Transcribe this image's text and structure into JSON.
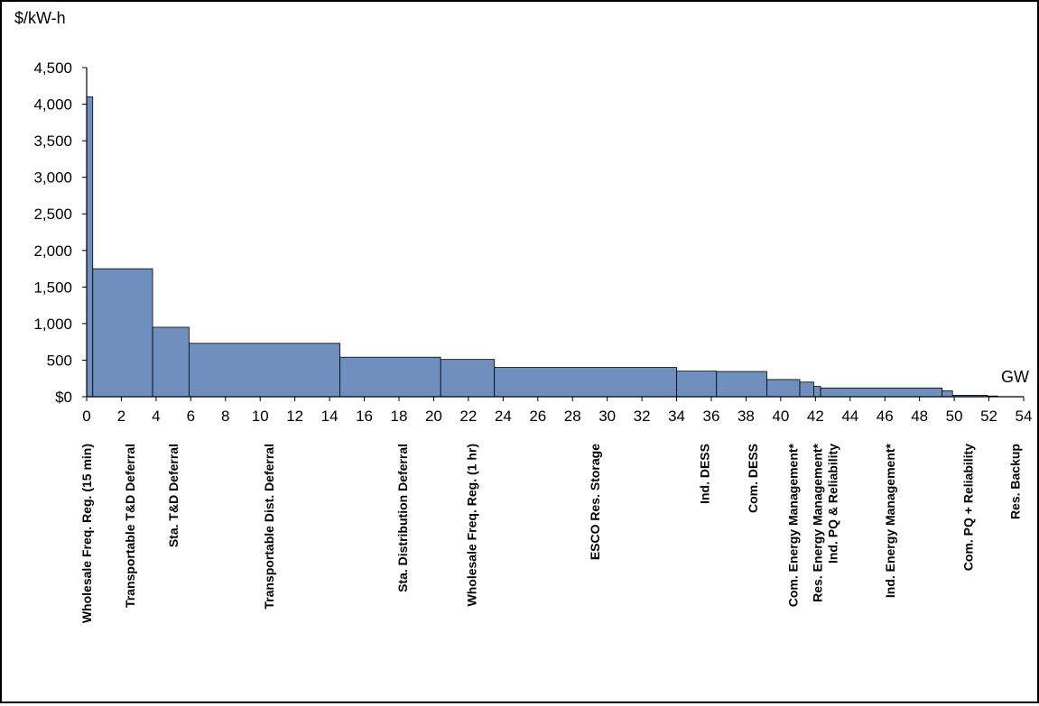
{
  "chart_data": {
    "type": "bar",
    "ylabel": "$/kW-h",
    "xlabel": "GW",
    "ylim": [
      0,
      4500
    ],
    "xlim": [
      0,
      54
    ],
    "y_ticks": [
      {
        "v": 0,
        "label": "$0"
      },
      {
        "v": 500,
        "label": "500"
      },
      {
        "v": 1000,
        "label": "1,000"
      },
      {
        "v": 1500,
        "label": "1,500"
      },
      {
        "v": 2000,
        "label": "2,000"
      },
      {
        "v": 2500,
        "label": "2,500"
      },
      {
        "v": 3000,
        "label": "3,000"
      },
      {
        "v": 3500,
        "label": "3,500"
      },
      {
        "v": 4000,
        "label": "4,000"
      },
      {
        "v": 4500,
        "label": "4,500"
      }
    ],
    "x_ticks": [
      "0",
      "2",
      "4",
      "6",
      "8",
      "10",
      "12",
      "14",
      "16",
      "18",
      "20",
      "22",
      "24",
      "26",
      "28",
      "30",
      "32",
      "34",
      "36",
      "38",
      "40",
      "42",
      "44",
      "46",
      "48",
      "50",
      "52",
      "54"
    ],
    "bar_color": "#6f8fbf",
    "segments": [
      {
        "x0": 0.0,
        "x1": 0.35,
        "value": 4100
      },
      {
        "x0": 0.35,
        "x1": 3.8,
        "value": 1750
      },
      {
        "x0": 3.8,
        "x1": 5.9,
        "value": 950
      },
      {
        "x0": 5.9,
        "x1": 14.6,
        "value": 730
      },
      {
        "x0": 14.6,
        "x1": 20.4,
        "value": 540
      },
      {
        "x0": 20.4,
        "x1": 23.5,
        "value": 510
      },
      {
        "x0": 23.5,
        "x1": 34.0,
        "value": 400
      },
      {
        "x0": 34.0,
        "x1": 36.3,
        "value": 350
      },
      {
        "x0": 36.3,
        "x1": 39.2,
        "value": 345
      },
      {
        "x0": 39.2,
        "x1": 41.1,
        "value": 235
      },
      {
        "x0": 41.1,
        "x1": 41.9,
        "value": 200
      },
      {
        "x0": 41.9,
        "x1": 42.3,
        "value": 140
      },
      {
        "x0": 42.3,
        "x1": 49.3,
        "value": 120
      },
      {
        "x0": 49.3,
        "x1": 49.9,
        "value": 80
      },
      {
        "x0": 49.9,
        "x1": 51.9,
        "value": 20
      },
      {
        "x0": 51.9,
        "x1": 52.5,
        "value": 10
      }
    ],
    "categories": [
      {
        "label": "Wholesale Freq. Reg. (15 min)",
        "x": 0.0
      },
      {
        "label": "Transportable T&D Deferral",
        "x": 2.5
      },
      {
        "label": "Sta. T&D Deferral",
        "x": 5.0
      },
      {
        "label": "Transportable Dist. Deferral",
        "x": 10.5
      },
      {
        "label": "Sta. Distribution Deferral",
        "x": 18.2
      },
      {
        "label": "Wholesale Freq. Reg. (1 hr)",
        "x": 22.2
      },
      {
        "label": "ESCO Res. Storage",
        "x": 29.3
      },
      {
        "label": "Ind. DESS",
        "x": 35.6
      },
      {
        "label": "Com. DESS",
        "x": 38.4
      },
      {
        "label": "Com. Energy Management*",
        "x": 40.7
      },
      {
        "label": "Res. Energy Management*",
        "x": 42.1
      },
      {
        "label": "Ind. PQ & Reliability",
        "x": 43.0
      },
      {
        "label": "Ind. Energy Management*",
        "x": 46.3
      },
      {
        "label": "Com. PQ + Reliability",
        "x": 50.8
      },
      {
        "label": "Res. Backup",
        "x": 53.5
      }
    ]
  }
}
